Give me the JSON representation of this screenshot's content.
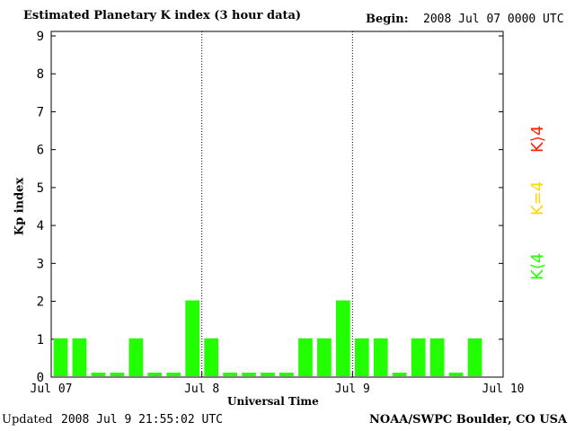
{
  "header": {
    "title": "Estimated Planetary K index (3 hour data)",
    "begin_label": "Begin:",
    "begin_value": "2008 Jul 07 0000 UTC"
  },
  "footer": {
    "updated_label": "Updated",
    "updated_value": "2008 Jul  9 21:55:02 UTC",
    "source": "NOAA/SWPC Boulder, CO USA"
  },
  "legend": {
    "high": {
      "label": "K⟩4",
      "color": "#ff2200"
    },
    "equal": {
      "label": "K=4",
      "color": "#ffd700"
    },
    "low": {
      "label": "K⟨4",
      "color": "#22ff00"
    }
  },
  "chart_data": {
    "type": "bar",
    "title": "Estimated Planetary K index (3 hour data)",
    "xlabel": "Universal Time",
    "ylabel": "Kp index",
    "ylim": [
      0,
      9
    ],
    "yticks": [
      0,
      1,
      2,
      3,
      4,
      5,
      6,
      7,
      8,
      9
    ],
    "xticks": [
      "Jul 07",
      "Jul 8",
      "Jul 9",
      "Jul 10"
    ],
    "day_dividers": [
      "Jul 8",
      "Jul 9"
    ],
    "bar_color": "#22ff00",
    "values": [
      1,
      1,
      0,
      0,
      1,
      0,
      0,
      2,
      1,
      0,
      0,
      0,
      0,
      1,
      1,
      2,
      1,
      1,
      0,
      1,
      1,
      0,
      1
    ]
  }
}
